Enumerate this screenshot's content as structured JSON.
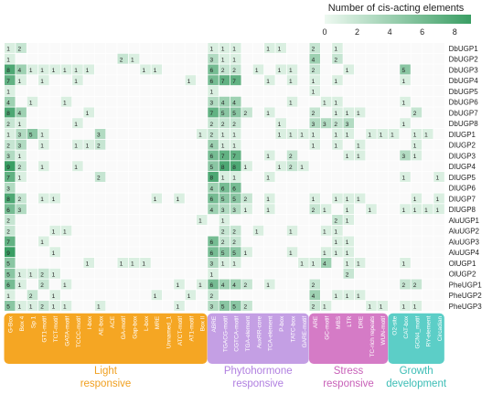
{
  "chart_data": {
    "type": "heatmap",
    "legend": {
      "title": "Number of cis-acting elements",
      "ticks": [
        0,
        2,
        4,
        6,
        8
      ],
      "range": [
        0,
        9
      ],
      "color_low": "#eef9f1",
      "color_high": "#3a9e64"
    },
    "rows": [
      "DbUGP1",
      "DbUGP2",
      "DbUGP3",
      "DbUGP4",
      "DbUGP5",
      "DbUGP6",
      "DbUGP7",
      "DbUGP8",
      "DlUGP1",
      "DlUGP2",
      "DlUGP3",
      "DlUGP4",
      "DlUGP5",
      "DlUGP6",
      "DlUGP7",
      "DlUGP8",
      "AluUGP1",
      "AluUGP2",
      "AluUGP3",
      "AluUGP4",
      "OlUGP1",
      "OlUGP2",
      "PheUGP1",
      "PheUGP2",
      "PheUGP3"
    ],
    "columns": [
      "G-Box",
      "Box 4",
      "Sp 1",
      "GT1-motif",
      "TCT-motif",
      "GATA-motif",
      "TCCC-motif",
      "I-box",
      "AE-box",
      "ACE",
      "GA-motif",
      "Gap-box",
      "L-box",
      "MRE",
      "Unnamed_1",
      "ATCT-motif",
      "AT1-motif",
      "Box II",
      "ABRE",
      "TGACG-motif",
      "CGTCA-motif",
      "TGA-element",
      "AuxRR-core",
      "TCA-element",
      "P-box",
      "TATC-box",
      "GARE-motif",
      "ARE",
      "GC-motif",
      "MBS",
      "LTR",
      "DRE",
      "TC-rich repeats",
      "WUN-motif",
      "O2-site",
      "CAT-box",
      "GCN4_motif",
      "RY-element",
      "Circadian"
    ],
    "groups": [
      {
        "label_line1": "Light",
        "label_line2": "responsive",
        "start": 0,
        "end": 17,
        "color": "#f5a623",
        "text_color": "#f0a020"
      },
      {
        "label_line1": "Phytohormone",
        "label_line2": "responsive",
        "start": 18,
        "end": 26,
        "color": "#c49fe4",
        "text_color": "#b07fe0"
      },
      {
        "label_line1": "Stress",
        "label_line2": "responsive",
        "start": 27,
        "end": 33,
        "color": "#d57bc6",
        "text_color": "#c860b8"
      },
      {
        "label_line1": "Growth",
        "label_line2": "development",
        "start": 34,
        "end": 38,
        "color": "#5ccec7",
        "text_color": "#3bbdb5"
      }
    ],
    "values": [
      [
        1,
        2,
        0,
        0,
        0,
        0,
        0,
        0,
        0,
        0,
        0,
        0,
        0,
        0,
        0,
        0,
        0,
        0,
        1,
        1,
        1,
        0,
        0,
        1,
        1,
        0,
        0,
        2,
        0,
        1,
        0,
        0,
        0,
        0,
        0,
        0,
        0,
        0,
        0
      ],
      [
        1,
        0,
        0,
        0,
        0,
        0,
        0,
        0,
        0,
        0,
        2,
        1,
        0,
        0,
        0,
        0,
        0,
        0,
        3,
        1,
        1,
        0,
        0,
        0,
        0,
        0,
        0,
        4,
        0,
        2,
        0,
        0,
        0,
        0,
        0,
        0,
        0,
        0,
        0
      ],
      [
        8,
        4,
        1,
        1,
        1,
        1,
        1,
        1,
        0,
        0,
        0,
        0,
        1,
        1,
        0,
        0,
        0,
        0,
        6,
        2,
        2,
        0,
        1,
        0,
        1,
        1,
        0,
        2,
        0,
        0,
        1,
        0,
        0,
        0,
        0,
        5,
        0,
        0,
        0
      ],
      [
        7,
        1,
        0,
        1,
        0,
        0,
        1,
        0,
        0,
        0,
        0,
        0,
        0,
        0,
        0,
        0,
        1,
        0,
        6,
        7,
        7,
        0,
        0,
        1,
        0,
        1,
        0,
        1,
        0,
        1,
        0,
        0,
        0,
        0,
        0,
        1,
        0,
        0,
        0
      ],
      [
        1,
        0,
        0,
        0,
        0,
        0,
        0,
        0,
        0,
        0,
        0,
        0,
        0,
        0,
        0,
        0,
        0,
        0,
        1,
        0,
        0,
        0,
        0,
        0,
        0,
        0,
        0,
        1,
        0,
        0,
        0,
        0,
        0,
        0,
        0,
        0,
        0,
        0,
        0
      ],
      [
        4,
        0,
        1,
        0,
        0,
        1,
        0,
        0,
        0,
        0,
        0,
        0,
        0,
        0,
        0,
        0,
        0,
        0,
        3,
        4,
        4,
        0,
        0,
        0,
        0,
        1,
        0,
        0,
        1,
        1,
        0,
        0,
        0,
        0,
        0,
        1,
        0,
        0,
        0
      ],
      [
        8,
        4,
        0,
        0,
        0,
        0,
        0,
        1,
        0,
        0,
        0,
        0,
        0,
        0,
        0,
        0,
        0,
        0,
        7,
        5,
        5,
        2,
        0,
        1,
        0,
        0,
        0,
        2,
        0,
        1,
        1,
        1,
        0,
        0,
        0,
        0,
        2,
        0,
        0
      ],
      [
        2,
        1,
        0,
        0,
        0,
        0,
        1,
        0,
        0,
        0,
        0,
        0,
        0,
        0,
        0,
        0,
        0,
        0,
        2,
        2,
        2,
        0,
        0,
        0,
        1,
        0,
        0,
        3,
        3,
        2,
        3,
        0,
        0,
        0,
        0,
        1,
        0,
        0,
        0
      ],
      [
        1,
        3,
        5,
        1,
        0,
        0,
        0,
        0,
        3,
        0,
        0,
        0,
        0,
        0,
        0,
        0,
        0,
        1,
        2,
        1,
        1,
        0,
        0,
        0,
        1,
        1,
        1,
        1,
        0,
        1,
        1,
        0,
        1,
        1,
        1,
        0,
        1,
        1,
        0
      ],
      [
        2,
        3,
        0,
        1,
        0,
        0,
        1,
        1,
        2,
        0,
        0,
        0,
        0,
        0,
        0,
        0,
        0,
        0,
        4,
        1,
        1,
        0,
        0,
        0,
        0,
        0,
        0,
        1,
        0,
        1,
        0,
        1,
        0,
        0,
        0,
        0,
        1,
        0,
        0
      ],
      [
        3,
        1,
        0,
        0,
        0,
        0,
        0,
        0,
        0,
        0,
        0,
        0,
        0,
        0,
        0,
        0,
        0,
        0,
        6,
        7,
        7,
        0,
        0,
        1,
        0,
        2,
        0,
        0,
        0,
        0,
        1,
        1,
        0,
        0,
        0,
        3,
        1,
        0,
        0
      ],
      [
        9,
        2,
        0,
        1,
        0,
        0,
        1,
        0,
        0,
        0,
        0,
        0,
        0,
        0,
        0,
        0,
        0,
        0,
        5,
        8,
        8,
        1,
        0,
        0,
        1,
        2,
        1,
        0,
        0,
        0,
        0,
        0,
        0,
        0,
        0,
        0,
        0,
        0,
        0
      ],
      [
        7,
        1,
        0,
        0,
        0,
        0,
        0,
        0,
        2,
        0,
        0,
        0,
        0,
        0,
        0,
        0,
        0,
        0,
        8,
        1,
        1,
        0,
        0,
        1,
        0,
        0,
        0,
        0,
        0,
        0,
        0,
        0,
        0,
        0,
        0,
        1,
        0,
        0,
        1
      ],
      [
        3,
        0,
        0,
        0,
        0,
        0,
        0,
        0,
        0,
        0,
        0,
        0,
        0,
        0,
        0,
        0,
        0,
        0,
        4,
        6,
        6,
        0,
        0,
        0,
        0,
        0,
        0,
        0,
        0,
        0,
        0,
        0,
        0,
        0,
        0,
        0,
        0,
        0,
        0
      ],
      [
        8,
        2,
        0,
        1,
        1,
        0,
        0,
        0,
        0,
        0,
        0,
        0,
        0,
        1,
        0,
        1,
        0,
        0,
        6,
        5,
        5,
        2,
        0,
        1,
        0,
        0,
        0,
        1,
        0,
        1,
        1,
        1,
        0,
        0,
        0,
        0,
        1,
        0,
        1
      ],
      [
        6,
        3,
        0,
        0,
        0,
        0,
        0,
        0,
        0,
        0,
        0,
        0,
        0,
        0,
        0,
        0,
        0,
        0,
        4,
        3,
        3,
        1,
        0,
        1,
        0,
        0,
        0,
        2,
        1,
        0,
        1,
        0,
        1,
        0,
        0,
        1,
        1,
        1,
        1
      ],
      [
        2,
        0,
        0,
        0,
        0,
        0,
        0,
        0,
        0,
        0,
        0,
        0,
        0,
        0,
        0,
        0,
        0,
        1,
        0,
        1,
        0,
        0,
        0,
        0,
        0,
        0,
        0,
        0,
        0,
        2,
        1,
        0,
        0,
        0,
        0,
        0,
        0,
        0,
        0
      ],
      [
        2,
        0,
        0,
        0,
        1,
        1,
        0,
        0,
        0,
        0,
        0,
        0,
        0,
        0,
        0,
        0,
        0,
        0,
        0,
        2,
        2,
        0,
        1,
        0,
        0,
        1,
        0,
        0,
        1,
        1,
        0,
        0,
        0,
        0,
        0,
        0,
        0,
        0,
        0
      ],
      [
        7,
        0,
        0,
        1,
        0,
        0,
        0,
        0,
        0,
        0,
        0,
        0,
        0,
        0,
        0,
        0,
        0,
        0,
        6,
        2,
        2,
        0,
        0,
        0,
        0,
        0,
        0,
        0,
        0,
        1,
        1,
        0,
        0,
        0,
        0,
        0,
        0,
        0,
        0
      ],
      [
        9,
        0,
        0,
        0,
        1,
        0,
        0,
        0,
        0,
        0,
        0,
        0,
        0,
        0,
        0,
        0,
        0,
        0,
        6,
        5,
        5,
        1,
        0,
        0,
        0,
        1,
        0,
        0,
        1,
        1,
        1,
        0,
        0,
        0,
        0,
        0,
        0,
        0,
        0
      ],
      [
        5,
        0,
        0,
        0,
        0,
        0,
        0,
        1,
        0,
        0,
        1,
        1,
        1,
        0,
        0,
        0,
        0,
        0,
        3,
        1,
        1,
        0,
        0,
        0,
        0,
        0,
        1,
        1,
        4,
        0,
        1,
        1,
        0,
        0,
        0,
        1,
        0,
        0,
        0
      ],
      [
        5,
        1,
        1,
        2,
        1,
        0,
        0,
        0,
        0,
        0,
        0,
        0,
        0,
        0,
        0,
        0,
        0,
        0,
        1,
        0,
        0,
        0,
        0,
        0,
        0,
        0,
        0,
        0,
        0,
        0,
        2,
        0,
        0,
        0,
        0,
        0,
        0,
        0,
        0
      ],
      [
        6,
        1,
        0,
        2,
        0,
        1,
        0,
        0,
        0,
        0,
        0,
        0,
        0,
        0,
        0,
        1,
        0,
        1,
        6,
        4,
        4,
        2,
        0,
        1,
        0,
        0,
        0,
        2,
        0,
        0,
        0,
        0,
        0,
        0,
        0,
        2,
        2,
        0,
        0
      ],
      [
        1,
        0,
        2,
        0,
        1,
        0,
        0,
        0,
        0,
        0,
        0,
        0,
        0,
        1,
        0,
        0,
        1,
        0,
        2,
        0,
        0,
        0,
        0,
        0,
        0,
        0,
        0,
        4,
        0,
        1,
        1,
        1,
        0,
        0,
        0,
        0,
        0,
        0,
        0
      ],
      [
        5,
        1,
        1,
        2,
        1,
        1,
        0,
        0,
        1,
        0,
        0,
        0,
        0,
        0,
        0,
        1,
        0,
        0,
        3,
        5,
        5,
        2,
        0,
        0,
        0,
        0,
        0,
        2,
        1,
        0,
        0,
        0,
        1,
        1,
        0,
        1,
        1,
        0,
        0
      ]
    ]
  }
}
